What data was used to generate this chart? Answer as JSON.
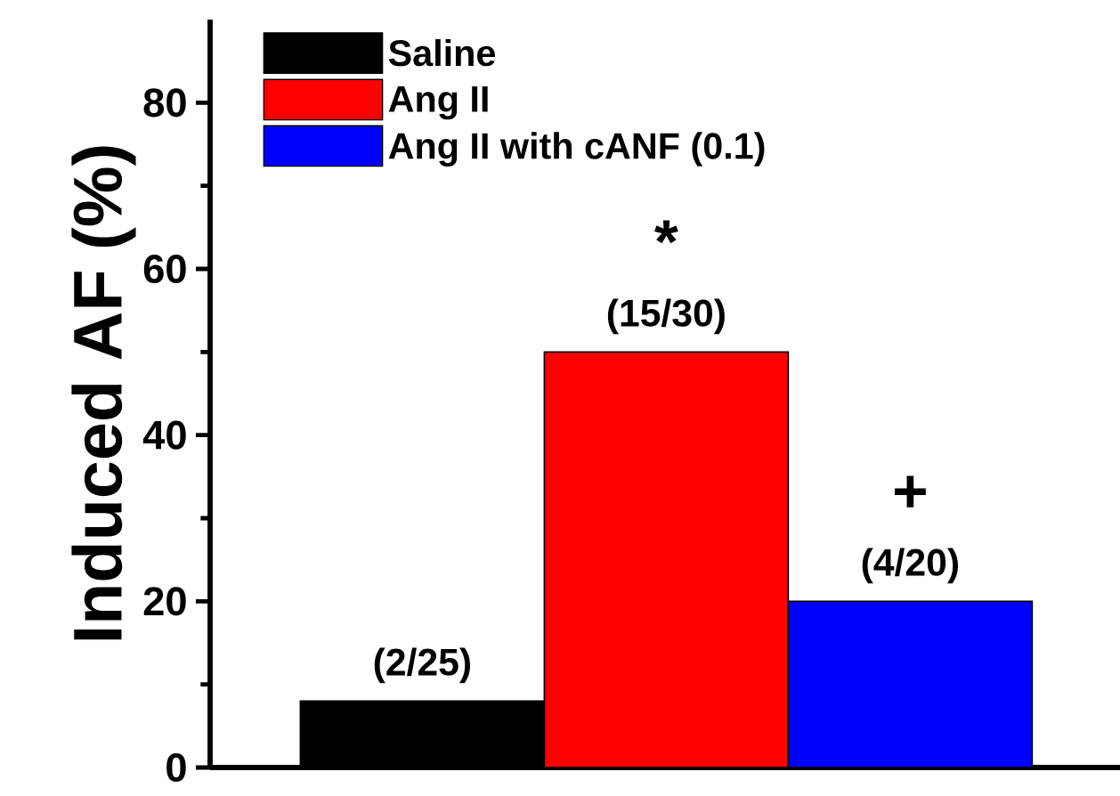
{
  "chart_data": {
    "type": "bar",
    "ylabel": "Induced AF (%)",
    "categories": [
      null,
      null,
      null
    ],
    "series": [
      {
        "name": "Saline",
        "color": "#000000",
        "values": [
          8,
          null,
          null
        ],
        "value_labels": [
          "(2/25)",
          null,
          null
        ]
      },
      {
        "name": "Ang II",
        "color": "#ff0000",
        "values": [
          null,
          50,
          null
        ],
        "value_labels": [
          null,
          "(15/30)",
          null
        ]
      },
      {
        "name": "Ang II with cANF (0.1)",
        "color": "#0000ff",
        "values": [
          null,
          null,
          20
        ],
        "value_labels": [
          null,
          null,
          "(4/20)"
        ]
      }
    ],
    "annotations": [
      {
        "text": "*",
        "y": 50
      },
      {
        "text": "+",
        "y": 20
      }
    ],
    "ylim": [
      0,
      90
    ],
    "yticks": [
      0,
      20,
      40,
      60,
      80
    ],
    "legend": "top left",
    "tick_labels": "y"
  }
}
